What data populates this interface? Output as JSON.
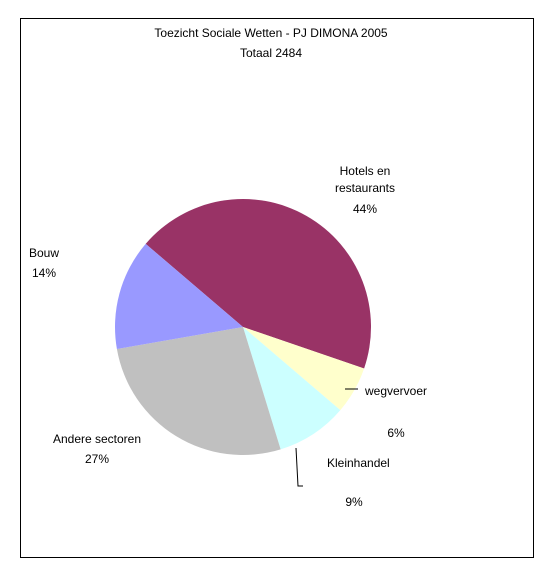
{
  "chart_data": {
    "type": "pie",
    "title": "Toezicht Sociale Wetten - PJ DIMONA 2005",
    "subtitle": "Totaal 2484",
    "slices": [
      {
        "label_lines": [
          "Hotels en",
          "restaurants"
        ],
        "percent_label": "44%",
        "value": 44,
        "color": "#993366"
      },
      {
        "label_lines": [
          "wegvervoer"
        ],
        "percent_label": "6%",
        "value": 6,
        "color": "#FFFFCC"
      },
      {
        "label_lines": [
          "Kleinhandel"
        ],
        "percent_label": "9%",
        "value": 9,
        "color": "#CCFFFF"
      },
      {
        "label_lines": [
          "Andere sectoren"
        ],
        "percent_label": "27%",
        "value": 27,
        "color": "#C0C0C0"
      },
      {
        "label_lines": [
          "Bouw"
        ],
        "percent_label": "14%",
        "value": 14,
        "color": "#9999FF"
      }
    ]
  }
}
